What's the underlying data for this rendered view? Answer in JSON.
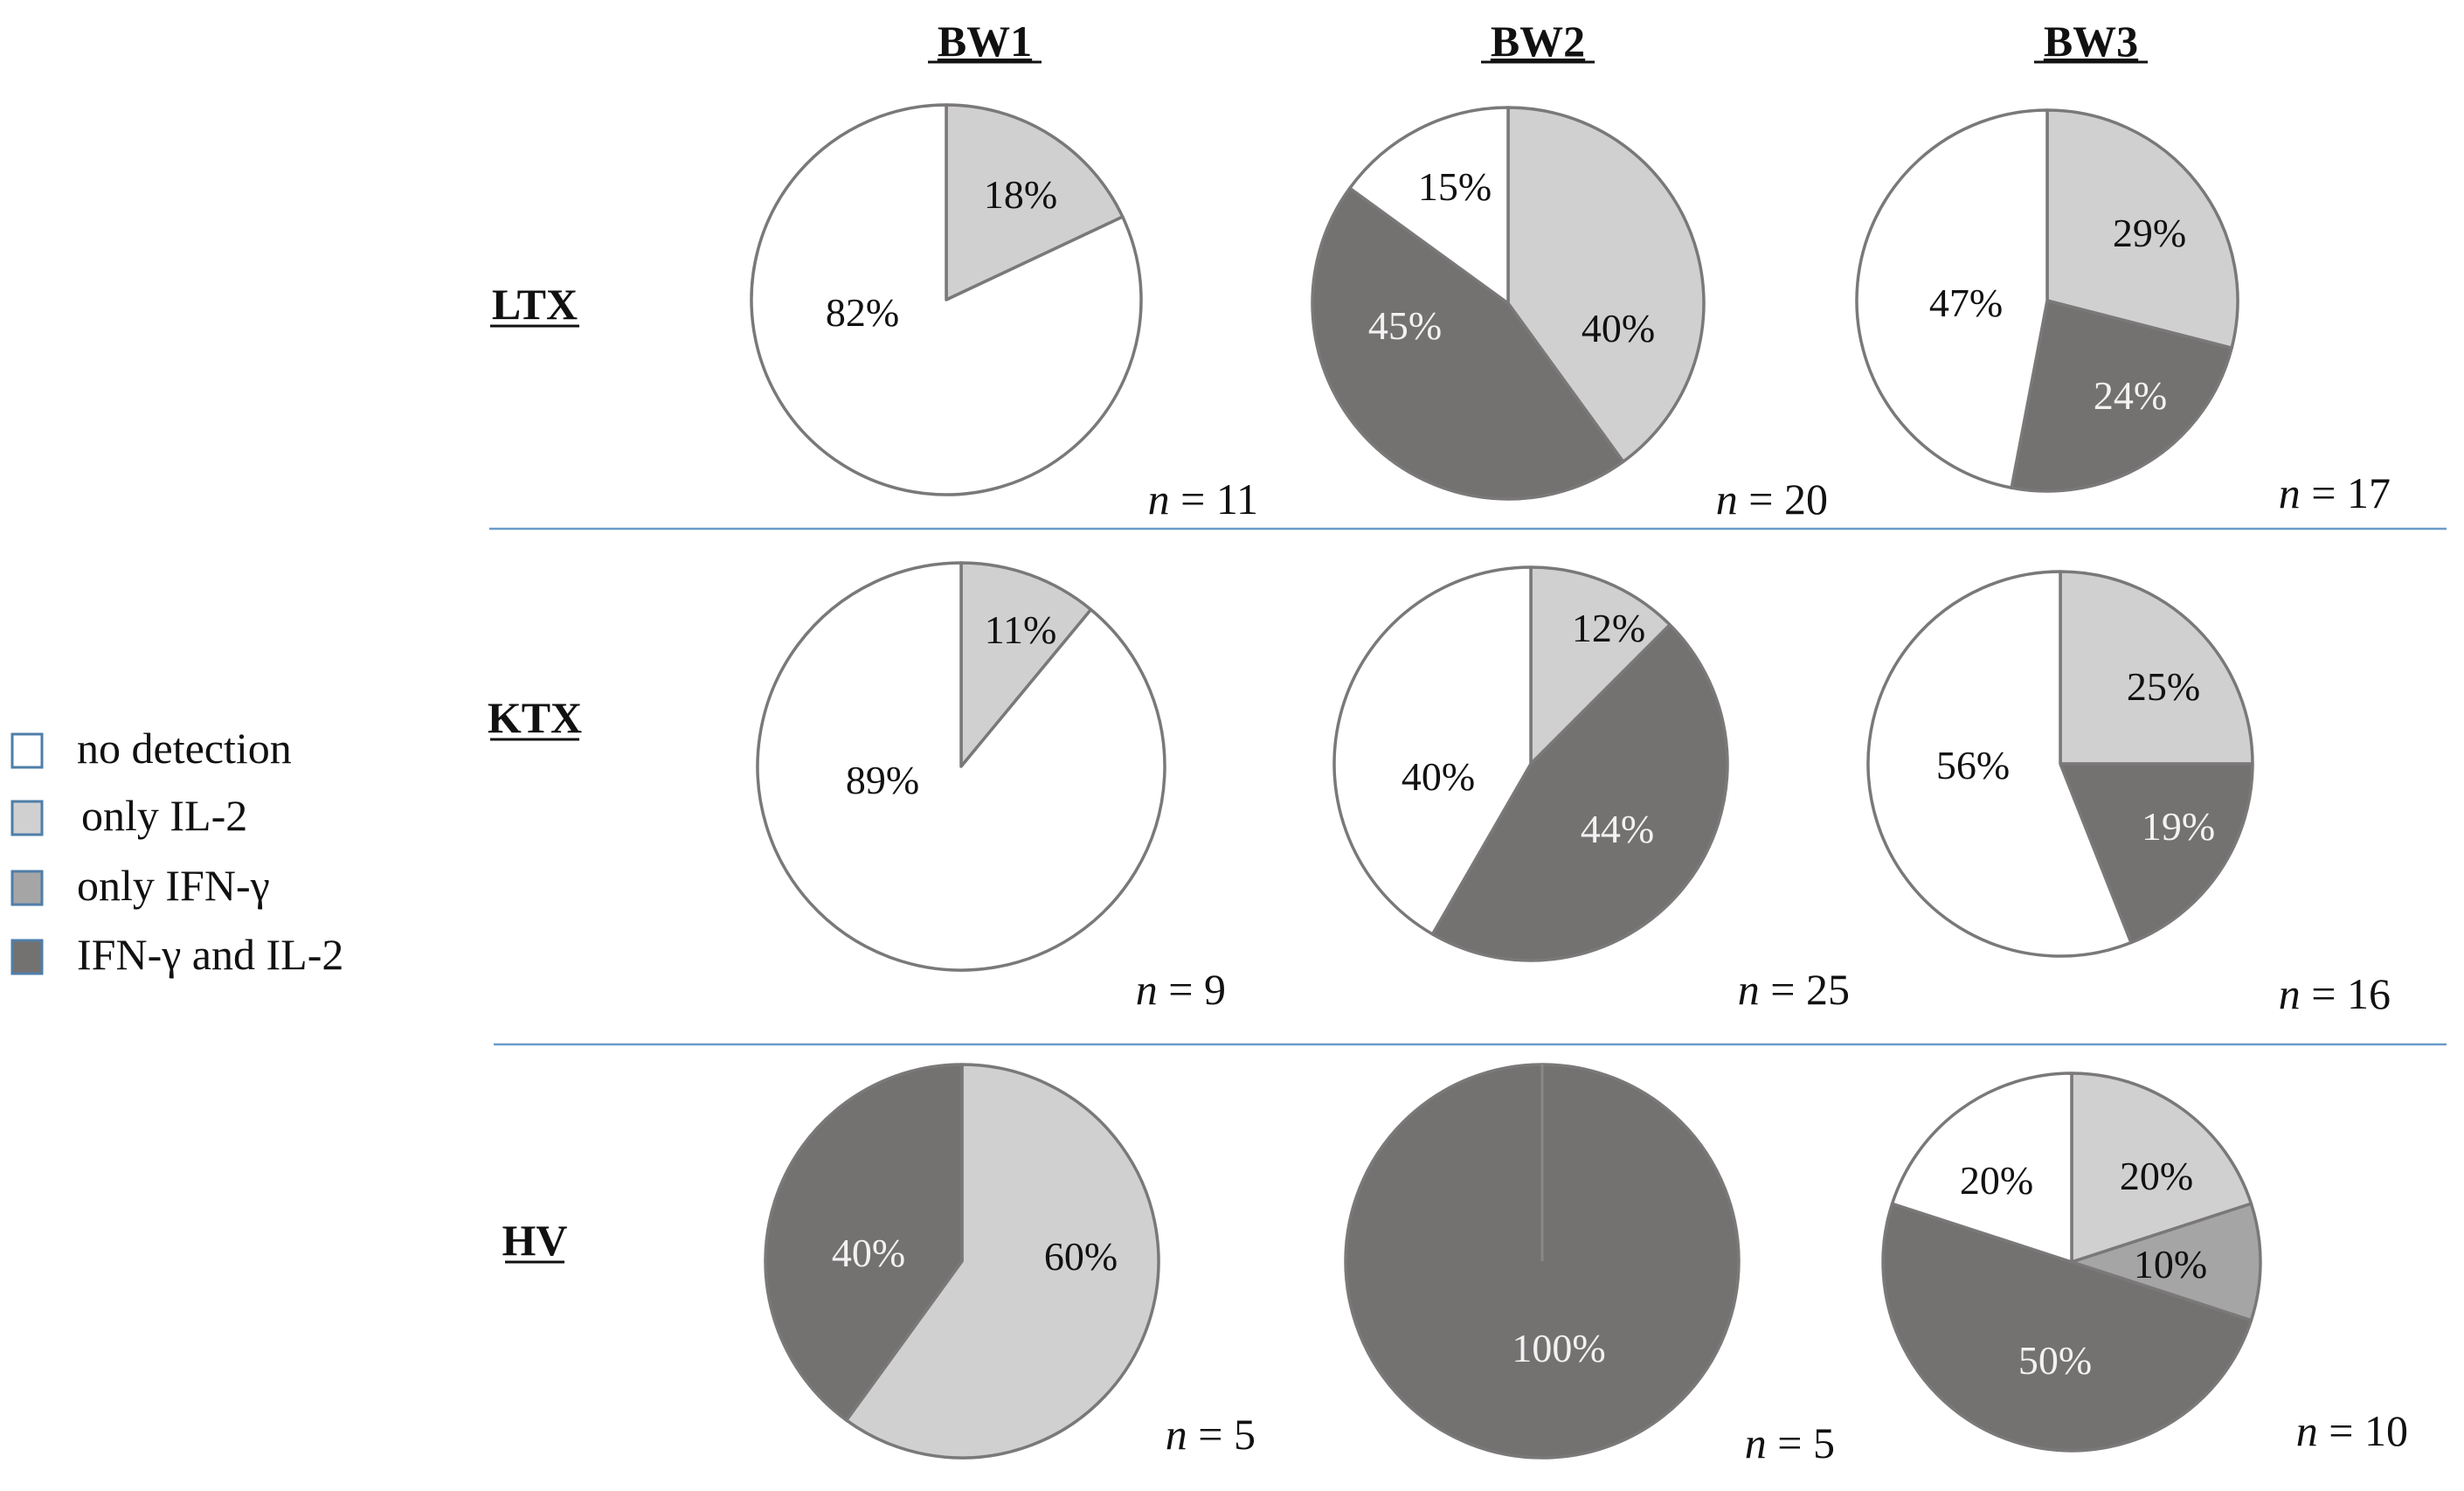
{
  "legend": [
    {
      "label": "no detection",
      "color": "#ffffff"
    },
    {
      "label": "only IL-2",
      "color": "#d1d0d1"
    },
    {
      "label": "only IFN-γ",
      "color": "#a6a5a6"
    },
    {
      "label": "IFN-γ and IL-2",
      "color": "#747171"
    }
  ],
  "chart_data": {
    "type": "pie",
    "columns": [
      "BW1",
      "BW2",
      "BW3"
    ],
    "rows": [
      "LTX",
      "KTX",
      "HV"
    ],
    "n_prefix": "n",
    "categories": [
      "no detection",
      "only IL-2",
      "only IFN-γ",
      "IFN-γ and IL-2"
    ],
    "panels": [
      {
        "row": "LTX",
        "column": "BW1",
        "n": 11,
        "slices": [
          {
            "category": "only IL-2",
            "value": 18,
            "label": "18%"
          },
          {
            "category": "no detection",
            "value": 82,
            "label": "82%"
          }
        ]
      },
      {
        "row": "LTX",
        "column": "BW2",
        "n": 20,
        "slices": [
          {
            "category": "only IL-2",
            "value": 40,
            "label": "40%"
          },
          {
            "category": "IFN-γ and IL-2",
            "value": 45,
            "label": "45%"
          },
          {
            "category": "no detection",
            "value": 15,
            "label": "15%"
          }
        ]
      },
      {
        "row": "LTX",
        "column": "BW3",
        "n": 17,
        "slices": [
          {
            "category": "only IL-2",
            "value": 29,
            "label": "29%"
          },
          {
            "category": "IFN-γ and IL-2",
            "value": 24,
            "label": "24%"
          },
          {
            "category": "no detection",
            "value": 47,
            "label": "47%"
          }
        ]
      },
      {
        "row": "KTX",
        "column": "BW1",
        "n": 9,
        "slices": [
          {
            "category": "only IL-2",
            "value": 11,
            "label": "11%"
          },
          {
            "category": "no detection",
            "value": 89,
            "label": "89%"
          }
        ]
      },
      {
        "row": "KTX",
        "column": "BW2",
        "n": 25,
        "slices": [
          {
            "category": "only IL-2",
            "value": 12,
            "label": "12%"
          },
          {
            "category": "IFN-γ and IL-2",
            "value": 44,
            "label": "44%"
          },
          {
            "category": "no detection",
            "value": 40,
            "label": "40%"
          }
        ]
      },
      {
        "row": "KTX",
        "column": "BW3",
        "n": 16,
        "slices": [
          {
            "category": "only IL-2",
            "value": 25,
            "label": "25%"
          },
          {
            "category": "IFN-γ and IL-2",
            "value": 19,
            "label": "19%"
          },
          {
            "category": "no detection",
            "value": 56,
            "label": "56%"
          }
        ]
      },
      {
        "row": "HV",
        "column": "BW1",
        "n": 5,
        "slices": [
          {
            "category": "only IL-2",
            "value": 60,
            "label": "60%"
          },
          {
            "category": "IFN-γ and IL-2",
            "value": 40,
            "label": "40%"
          }
        ]
      },
      {
        "row": "HV",
        "column": "BW2",
        "n": 5,
        "slices": [
          {
            "category": "IFN-γ and IL-2",
            "value": 100,
            "label": "100%"
          }
        ]
      },
      {
        "row": "HV",
        "column": "BW3",
        "n": 10,
        "slices": [
          {
            "category": "only IL-2",
            "value": 20,
            "label": "20%"
          },
          {
            "category": "only IFN-γ",
            "value": 10,
            "label": "10%"
          },
          {
            "category": "IFN-γ and IL-2",
            "value": 50,
            "label": "50%"
          },
          {
            "category": "no detection",
            "value": 20,
            "label": "20%"
          }
        ]
      }
    ]
  }
}
